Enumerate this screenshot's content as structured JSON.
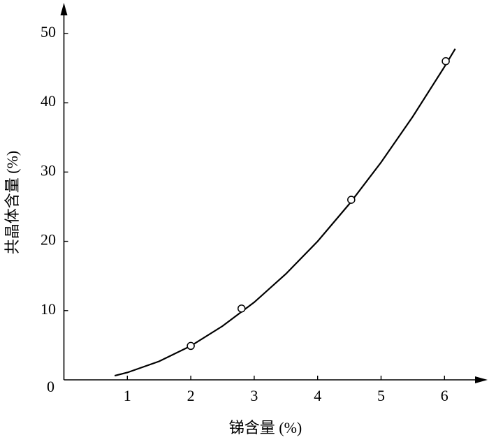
{
  "chart_data": {
    "type": "line",
    "x_label": "锑含量 (%)",
    "y_label": "共晶体含量 (%)",
    "xlim": [
      0,
      6.65
    ],
    "xticks": [
      1,
      2,
      3,
      4,
      5,
      6
    ],
    "ylim": [
      0,
      54
    ],
    "yticks": [
      0,
      10,
      20,
      30,
      40,
      50
    ],
    "color": "#000000",
    "curve": {
      "x": [
        0.8,
        1.0,
        1.5,
        2.0,
        2.5,
        3.0,
        3.5,
        4.0,
        4.5,
        5.0,
        5.5,
        6.0,
        6.17
      ],
      "y": [
        0.6,
        1.06,
        2.67,
        4.9,
        7.76,
        11.2,
        15.3,
        20.0,
        25.4,
        31.4,
        38.0,
        45.2,
        47.8
      ]
    },
    "points": {
      "x": [
        2.0,
        2.8,
        4.53,
        6.02
      ],
      "y": [
        4.9,
        10.3,
        26.0,
        46.0
      ]
    }
  }
}
